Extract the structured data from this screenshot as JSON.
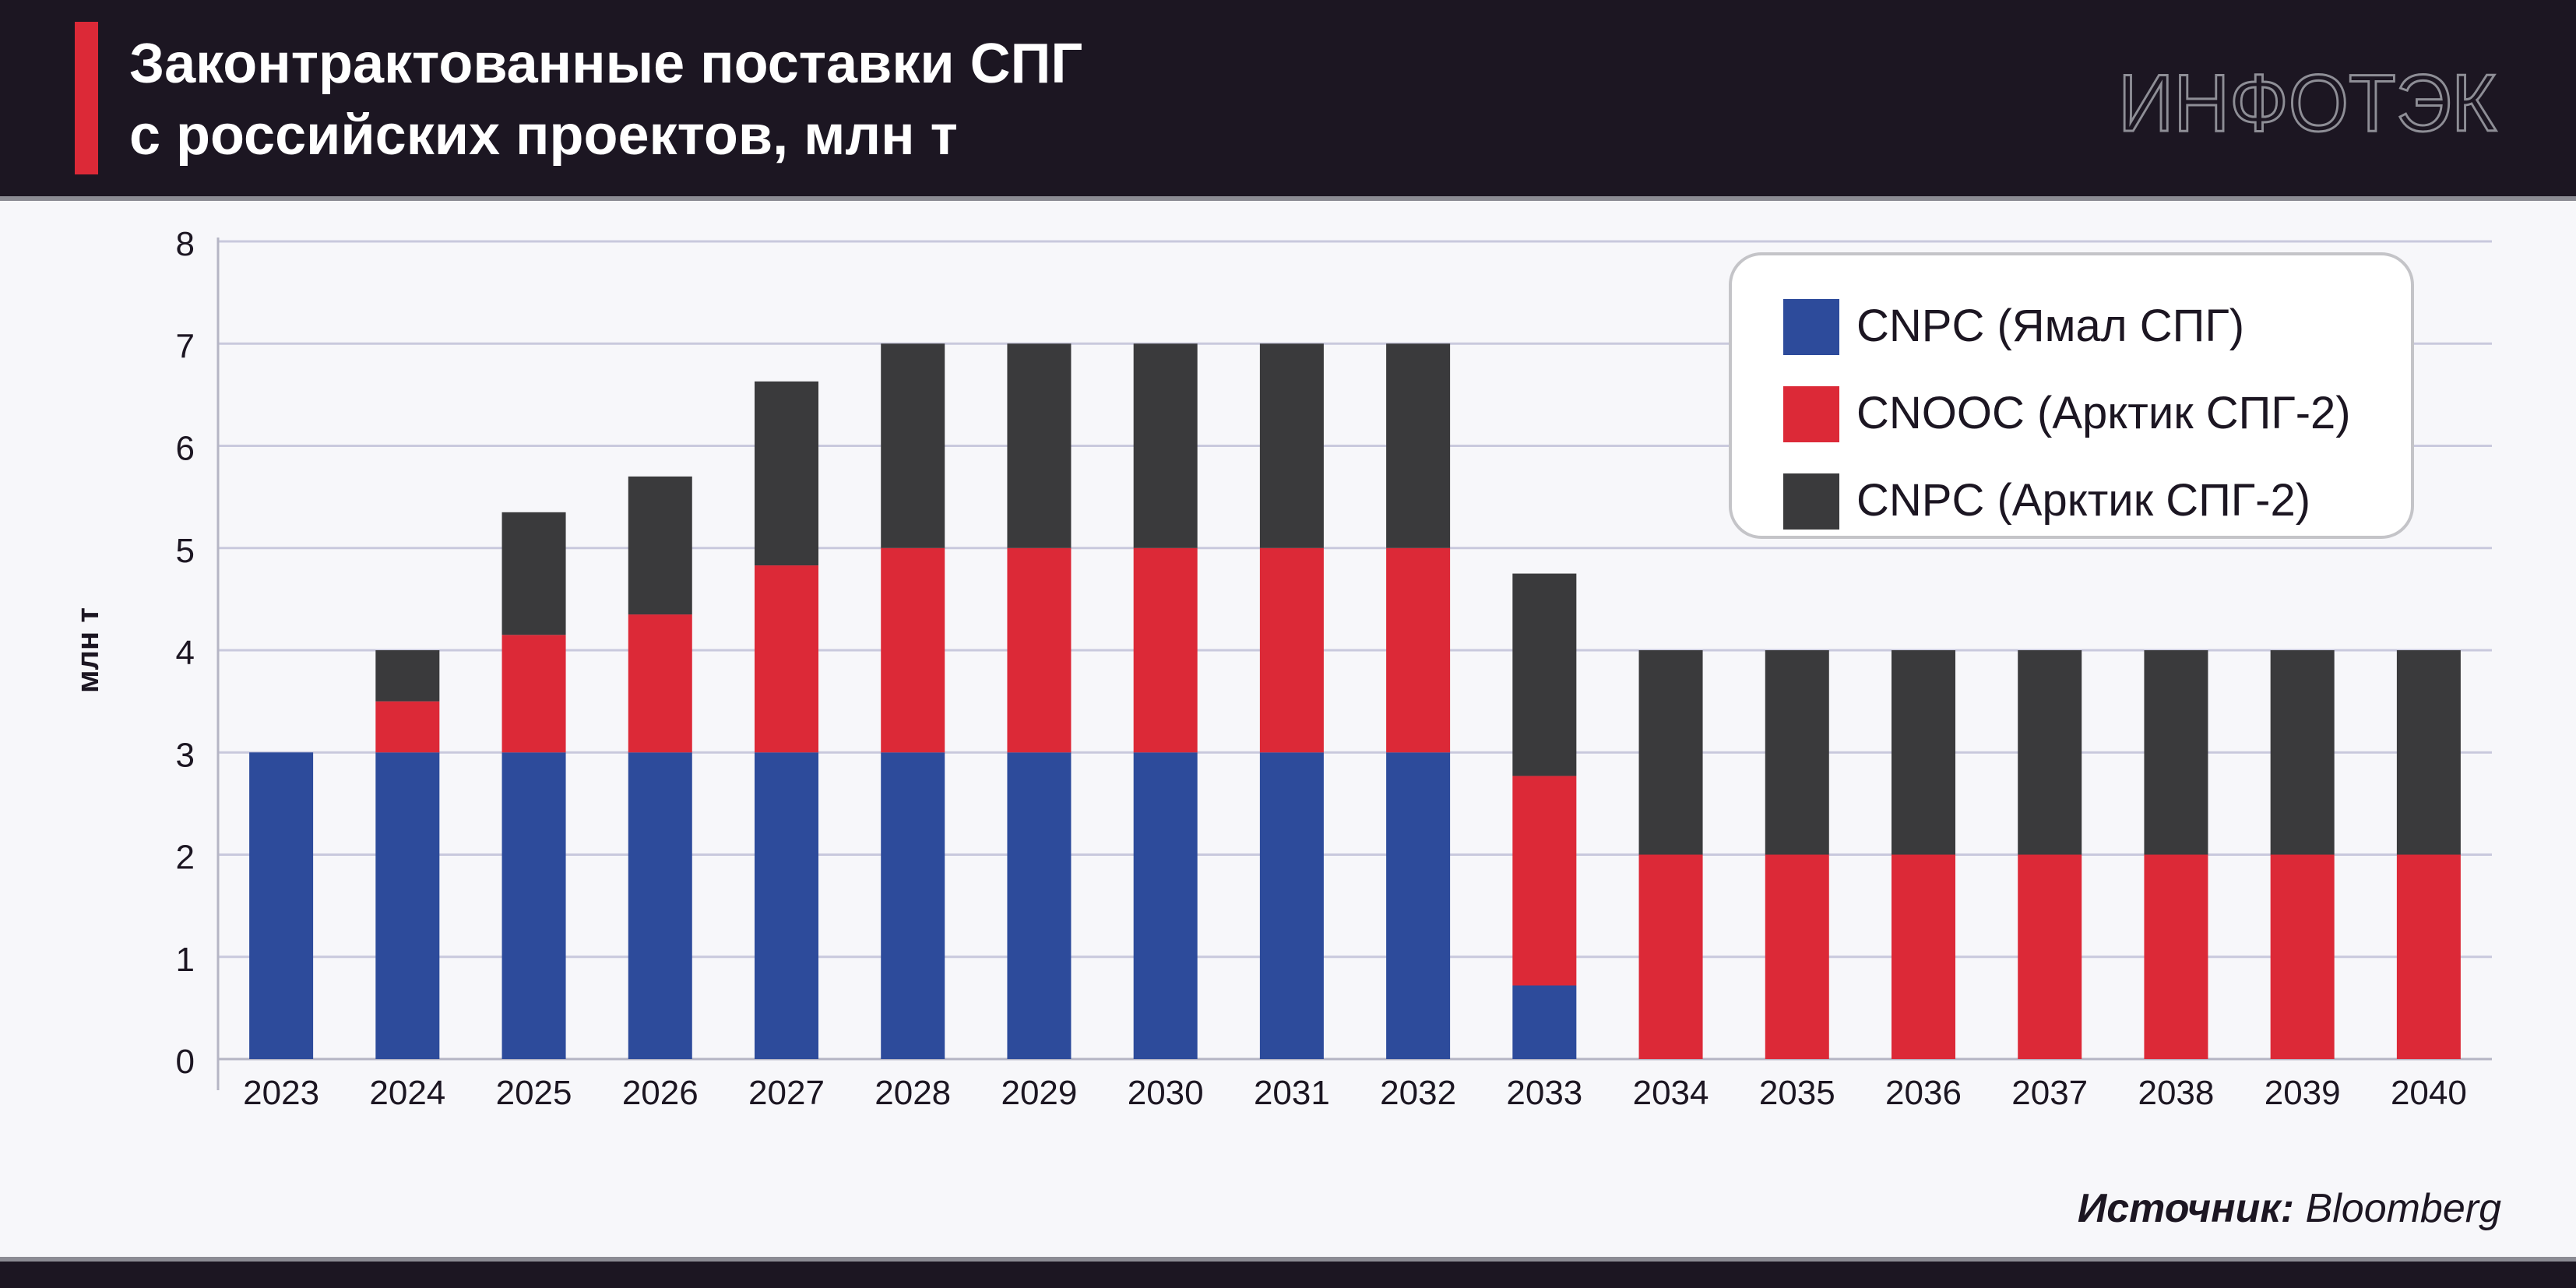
{
  "header": {
    "title_line1": "Законтрактованные поставки СПГ",
    "title_line2": "с российских проектов, млн т",
    "logo": "ИНФОТЭК"
  },
  "colors": {
    "header_bg": "#1c1622",
    "accent": "#dc2937",
    "cnpc_yamal": "#2d4b9b",
    "cnooc_arctic": "#dc2937",
    "cnpc_arctic": "#3a3a3c",
    "grid": "#c9c9dd"
  },
  "source": {
    "label": "Источник:",
    "value": "Bloomberg"
  },
  "chart_data": {
    "type": "bar",
    "stacked": true,
    "ylabel": "млн т",
    "xlabel": "",
    "ylim": [
      0,
      8
    ],
    "yticks": [
      "0",
      "1",
      "2",
      "3",
      "4",
      "5",
      "6",
      "7",
      "8"
    ],
    "grid": true,
    "legend_position": "top-right",
    "categories": [
      "2023",
      "2024",
      "2025",
      "2026",
      "2027",
      "2028",
      "2029",
      "2030",
      "2031",
      "2032",
      "2033",
      "2034",
      "2035",
      "2036",
      "2037",
      "2038",
      "2039",
      "2040"
    ],
    "series": [
      {
        "name": "CNPC (Ямал СПГ)",
        "color": "#2d4b9b",
        "values": [
          3,
          3,
          3,
          3,
          3,
          3,
          3,
          3,
          3,
          3,
          0.72,
          0,
          0,
          0,
          0,
          0,
          0,
          0
        ]
      },
      {
        "name": "CNOOC (Арктик СПГ-2)",
        "color": "#dc2937",
        "values": [
          0,
          0.5,
          1.15,
          1.35,
          1.83,
          2,
          2,
          2,
          2,
          2,
          2.05,
          2,
          2,
          2,
          2,
          2,
          2,
          2
        ]
      },
      {
        "name": "CNPC (Арктик СПГ-2)",
        "color": "#3a3a3c",
        "values": [
          0,
          0.5,
          1.2,
          1.35,
          1.8,
          2,
          2,
          2,
          2,
          2,
          1.98,
          2,
          2,
          2,
          2,
          2,
          2,
          2
        ]
      }
    ]
  }
}
